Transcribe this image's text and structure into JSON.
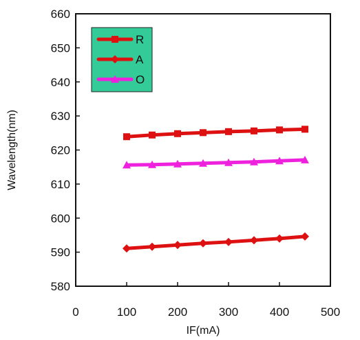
{
  "chart_data": {
    "type": "line",
    "title": "",
    "xlabel": "IF(mA)",
    "ylabel": "Wavelength(nm)",
    "xlim": [
      0,
      500
    ],
    "ylim": [
      580,
      660
    ],
    "xticks": [
      "0",
      "100",
      "200",
      "300",
      "400",
      "500"
    ],
    "yticks": [
      "580",
      "590",
      "600",
      "610",
      "620",
      "630",
      "640",
      "650",
      "660"
    ],
    "x": [
      100,
      150,
      200,
      250,
      300,
      350,
      400,
      450
    ],
    "grid": false,
    "legend_position": "top-left",
    "legend_background": "#33cc99",
    "series": [
      {
        "name": "R",
        "color": "#dd1111",
        "marker": "square",
        "values": [
          623.9,
          624.4,
          624.8,
          625.1,
          625.4,
          625.6,
          625.9,
          626.1
        ]
      },
      {
        "name": "A",
        "color": "#dd1111",
        "marker": "diamond",
        "values": [
          591.1,
          591.6,
          592.1,
          592.6,
          593.0,
          593.5,
          594.0,
          594.6
        ]
      },
      {
        "name": "O",
        "color": "#ee22dd",
        "marker": "triangle",
        "values": [
          615.6,
          615.7,
          615.9,
          616.1,
          616.3,
          616.5,
          616.8,
          617.1
        ]
      }
    ]
  }
}
